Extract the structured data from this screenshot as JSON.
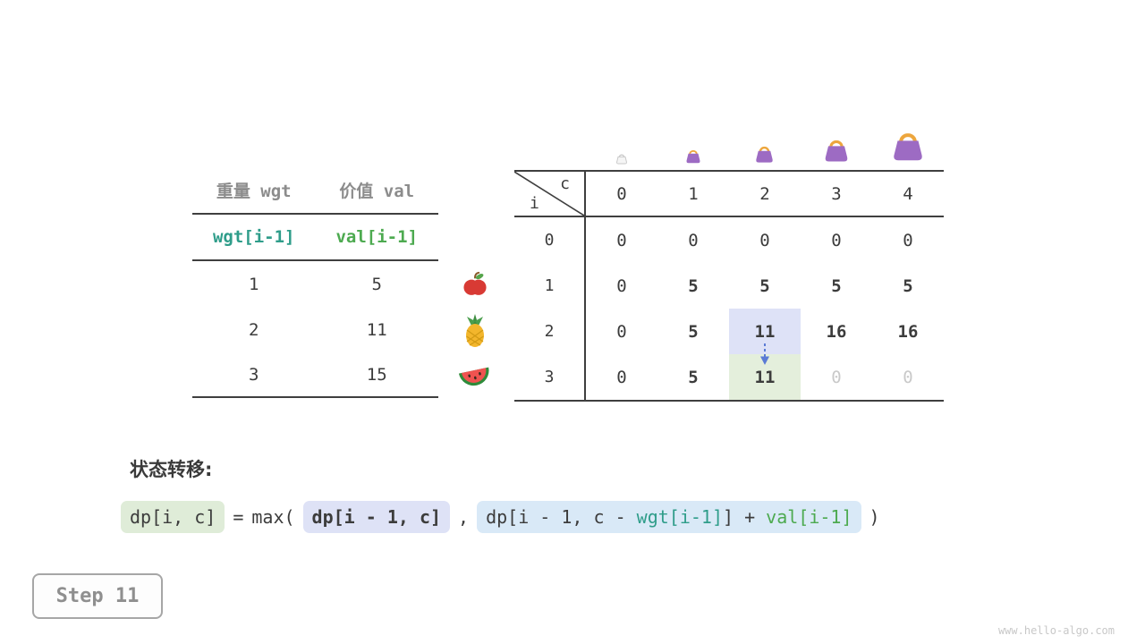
{
  "watermark": "www.hello-algo.com",
  "step": {
    "label": "Step 11"
  },
  "items_table": {
    "col1_header": "重量 wgt",
    "col2_header": "价值 val",
    "col1_sub": "wgt[i-1]",
    "col2_sub": "val[i-1]",
    "rows": [
      {
        "wgt": "1",
        "val": "5",
        "icon": "apple-icon"
      },
      {
        "wgt": "2",
        "val": "11",
        "icon": "pineapple-icon"
      },
      {
        "wgt": "3",
        "val": "15",
        "icon": "watermelon-icon"
      }
    ]
  },
  "dp_table": {
    "corner_col_label": "c",
    "corner_row_label": "i",
    "col_headers": [
      "0",
      "1",
      "2",
      "3",
      "4"
    ],
    "bag_icons": [
      "bag-capacity-0-icon",
      "bag-capacity-1-icon",
      "bag-capacity-2-icon",
      "bag-capacity-3-icon",
      "bag-capacity-4-icon"
    ],
    "rows": [
      {
        "label": "0",
        "cells": [
          {
            "v": "0"
          },
          {
            "v": "0"
          },
          {
            "v": "0"
          },
          {
            "v": "0"
          },
          {
            "v": "0"
          }
        ]
      },
      {
        "label": "1",
        "cells": [
          {
            "v": "0"
          },
          {
            "v": "5",
            "bold": true
          },
          {
            "v": "5",
            "bold": true
          },
          {
            "v": "5",
            "bold": true
          },
          {
            "v": "5",
            "bold": true
          }
        ]
      },
      {
        "label": "2",
        "cells": [
          {
            "v": "0"
          },
          {
            "v": "5",
            "bold": true
          },
          {
            "v": "11",
            "bold": true,
            "hl": "blue"
          },
          {
            "v": "16",
            "bold": true
          },
          {
            "v": "16",
            "bold": true
          }
        ]
      },
      {
        "label": "3",
        "cells": [
          {
            "v": "0"
          },
          {
            "v": "5",
            "bold": true
          },
          {
            "v": "11",
            "bold": true,
            "hl": "green"
          },
          {
            "v": "0",
            "grey": true
          },
          {
            "v": "0",
            "grey": true
          }
        ]
      }
    ],
    "arrow": {
      "from": "dp[2][2]",
      "to": "dp[3][2]",
      "color": "#5b7bd5"
    }
  },
  "transition": {
    "heading": "状态转移:",
    "lhs": "dp[i, c]",
    "equals": "=",
    "max_open": "max(",
    "option1": "dp[i - 1, c]",
    "separator": ",",
    "option2_prefix": "dp[i - 1, c - ",
    "option2_wgt": "wgt[i-1]",
    "option2_mid": "] + ",
    "option2_val": "val[i-1]",
    "close": ")"
  },
  "colors": {
    "wgt_text": "#2f9d8a",
    "val_text": "#4daa50",
    "highlight_blue": "#dee2f7",
    "highlight_green": "#e4efdc",
    "chip_green": "#dfecd8",
    "chip_lavender": "#dee2f6",
    "chip_blue": "#d9e9f7",
    "arrow_blue": "#5b7bd5",
    "bag_purple": "#9d6bc3",
    "bag_handle": "#eda63d"
  }
}
